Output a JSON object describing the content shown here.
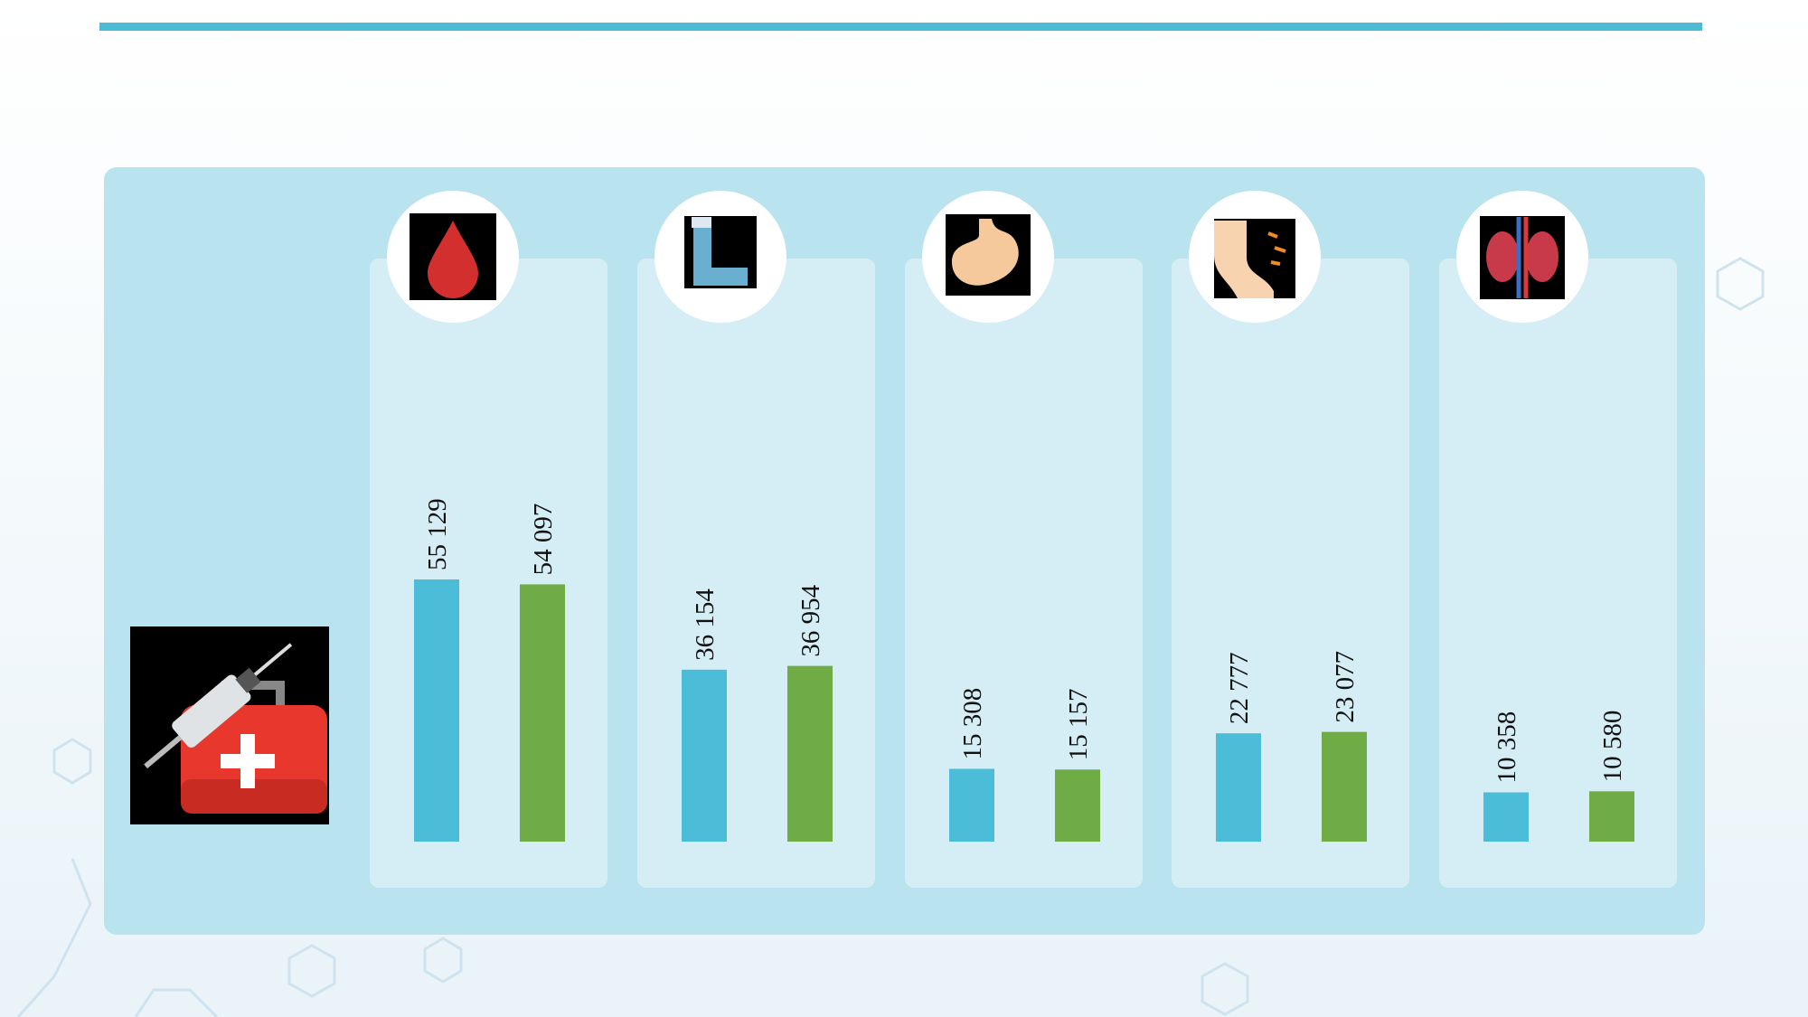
{
  "chart_data": {
    "type": "bar",
    "categories": [
      null,
      null,
      null,
      null,
      null
    ],
    "series": [
      {
        "color": "#4bbdd8",
        "values": [
          55129,
          36154,
          15308,
          22777,
          10358
        ],
        "value_labels": [
          "55 129",
          "36 154",
          "15 308",
          "22 777",
          "10 358"
        ]
      },
      {
        "color": "#6fac46",
        "values": [
          54097,
          36954,
          15157,
          23077,
          10580
        ],
        "value_labels": [
          "54 097",
          "36 954",
          "15 157",
          "23 077",
          "10 580"
        ]
      }
    ]
  }
}
